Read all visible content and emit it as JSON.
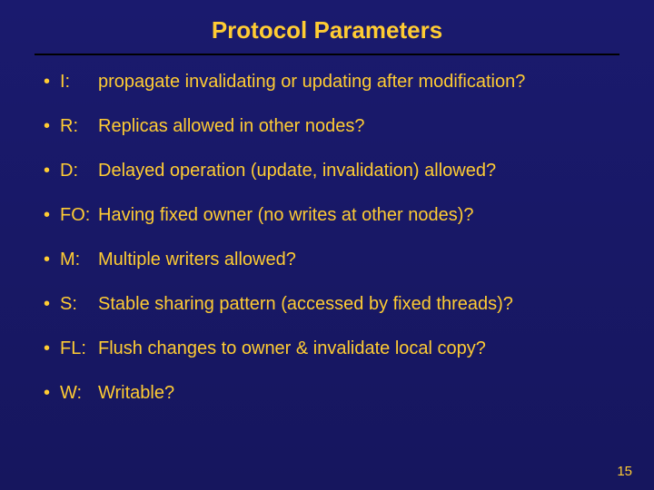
{
  "slide": {
    "title": "Protocol Parameters",
    "title_fontsize": 26,
    "title_color": "#ffcc33",
    "body_fontsize": 20,
    "body_color": "#ffcc33",
    "background_gradient_top": "#1a1a6e",
    "background_gradient_bottom": "#16165e",
    "divider_color": "#000000",
    "bullets": [
      {
        "label": "I:",
        "text": "propagate invalidating or updating after modification?"
      },
      {
        "label": "R:",
        "text": "Replicas allowed in other nodes?"
      },
      {
        "label": "D:",
        "text": "Delayed operation (update, invalidation) allowed?"
      },
      {
        "label": "FO:",
        "text": "Having fixed owner (no writes at other nodes)?"
      },
      {
        "label": "M:",
        "text": "Multiple writers allowed?"
      },
      {
        "label": "S:",
        "text": "Stable sharing pattern (accessed by fixed threads)?"
      },
      {
        "label": "FL:",
        "text": "Flush changes to owner & invalidate local copy?"
      },
      {
        "label": "W:",
        "text": "Writable?"
      }
    ],
    "page_number": "15",
    "page_number_fontsize": 15
  }
}
